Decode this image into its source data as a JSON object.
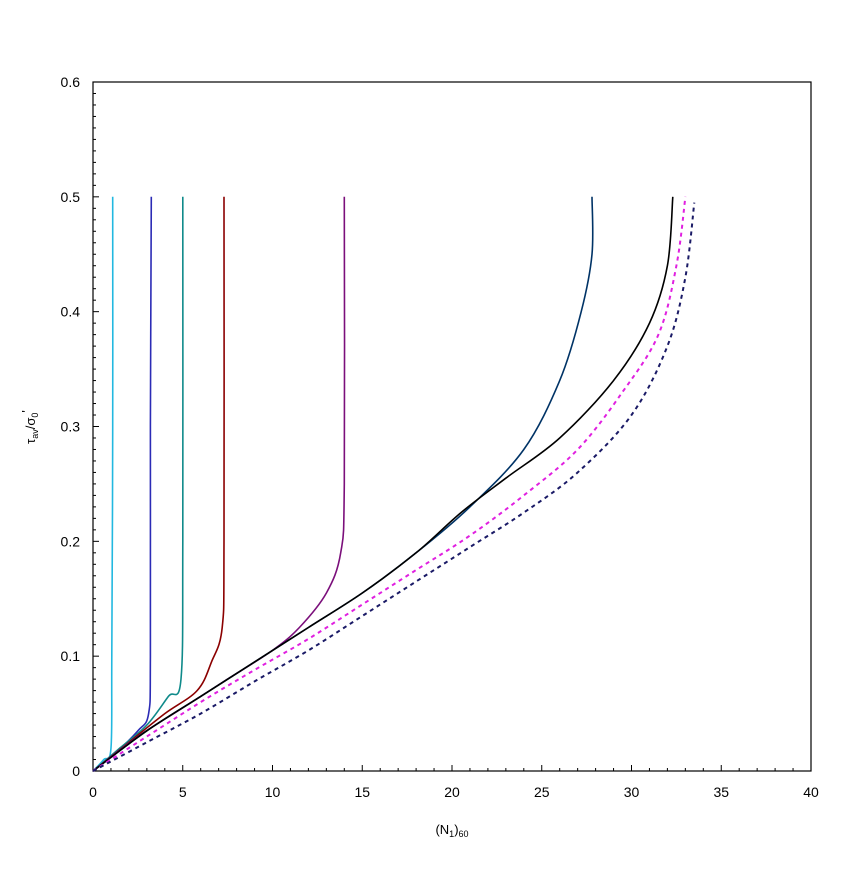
{
  "chart_data": {
    "type": "line",
    "title": "",
    "xlabel": {
      "main": "(N",
      "sub1": "1",
      "mid": ")",
      "sub2": "60"
    },
    "ylabel": {
      "main": "τ",
      "sub1": "av",
      "mid": "/σ",
      "sub2": "0",
      "sup": "'"
    },
    "xlim": [
      0,
      40
    ],
    "ylim": [
      0,
      0.6
    ],
    "x_ticks": [
      0,
      5,
      10,
      15,
      20,
      25,
      30,
      35,
      40
    ],
    "x_tick_labels": [
      "0",
      "5",
      "10",
      "15",
      "20",
      "25",
      "30",
      "35",
      "40"
    ],
    "y_ticks": [
      0,
      0.1,
      0.2,
      0.3,
      0.4,
      0.5,
      0.6
    ],
    "y_tick_labels": [
      "0",
      "0.1",
      "0.2",
      "0.3",
      "0.4",
      "0.5",
      "0.6"
    ],
    "grid": false,
    "legend": "none",
    "series": [
      {
        "color": "#22b8e0",
        "dashed": false,
        "x": [
          0,
          0.6,
          1.0,
          1.05,
          1.1,
          1.1
        ],
        "y": [
          0,
          0.01,
          0.02,
          0.1,
          0.3,
          0.5
        ]
      },
      {
        "color": "#2b2bb5",
        "dashed": false,
        "x": [
          0,
          1.2,
          2.5,
          3.1,
          3.2,
          3.2,
          3.25
        ],
        "y": [
          0,
          0.015,
          0.035,
          0.05,
          0.1,
          0.3,
          0.5
        ]
      },
      {
        "color": "#0f8a8a",
        "dashed": false,
        "x": [
          0,
          1.5,
          3.0,
          4.2,
          4.9,
          5.0,
          5.0
        ],
        "y": [
          0,
          0.02,
          0.04,
          0.065,
          0.08,
          0.2,
          0.5
        ]
      },
      {
        "color": "#8b0000",
        "dashed": false,
        "x": [
          0,
          2.0,
          4.0,
          5.8,
          6.6,
          7.2,
          7.3,
          7.3
        ],
        "y": [
          0,
          0.025,
          0.05,
          0.07,
          0.095,
          0.125,
          0.2,
          0.5
        ]
      },
      {
        "color": "#7b0f7b",
        "dashed": false,
        "x": [
          0,
          2.5,
          5.0,
          7.5,
          10.0,
          11.5,
          13.0,
          13.8,
          14.0,
          14.0
        ],
        "y": [
          0,
          0.03,
          0.055,
          0.08,
          0.105,
          0.125,
          0.155,
          0.19,
          0.25,
          0.5
        ]
      },
      {
        "color": "#003366",
        "dashed": false,
        "x": [
          0,
          3.0,
          6.0,
          9.0,
          12.0,
          15.0,
          18.0,
          21.0,
          24.0,
          26.0,
          27.2,
          27.8,
          27.8
        ],
        "y": [
          0,
          0.035,
          0.065,
          0.095,
          0.125,
          0.155,
          0.19,
          0.23,
          0.28,
          0.34,
          0.4,
          0.45,
          0.5
        ]
      },
      {
        "color": "#000000",
        "dashed": false,
        "x": [
          0,
          3.0,
          6.0,
          9.0,
          12.0,
          15.0,
          18.0,
          20.5,
          23.0,
          26.0,
          29.0,
          31.0,
          32.0,
          32.3
        ],
        "y": [
          0,
          0.035,
          0.065,
          0.095,
          0.125,
          0.155,
          0.19,
          0.225,
          0.255,
          0.29,
          0.34,
          0.39,
          0.44,
          0.5
        ]
      },
      {
        "color": "#e020e0",
        "dashed": true,
        "x": [
          0,
          3.0,
          6.0,
          9.0,
          12.0,
          15.0,
          18.0,
          21.0,
          24.0,
          27.0,
          29.5,
          31.5,
          32.5,
          33.0
        ],
        "y": [
          0,
          0.03,
          0.06,
          0.088,
          0.115,
          0.145,
          0.175,
          0.205,
          0.24,
          0.28,
          0.33,
          0.38,
          0.44,
          0.5
        ]
      },
      {
        "color": "#1a1a66",
        "dashed": true,
        "x": [
          0,
          3.0,
          6.0,
          9.0,
          12.0,
          15.0,
          18.0,
          21.0,
          24.0,
          27.0,
          30.0,
          32.0,
          33.0,
          33.5
        ],
        "y": [
          0,
          0.025,
          0.05,
          0.078,
          0.105,
          0.135,
          0.165,
          0.195,
          0.225,
          0.26,
          0.31,
          0.37,
          0.43,
          0.495
        ]
      }
    ]
  }
}
